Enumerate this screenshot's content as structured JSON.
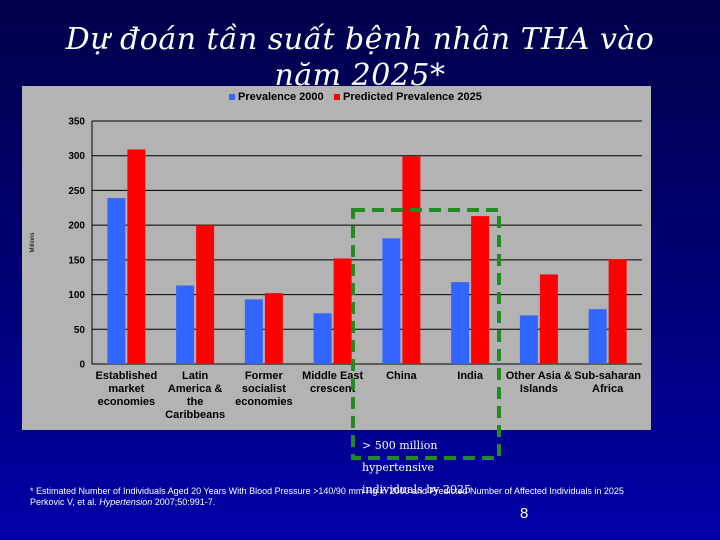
{
  "slide": {
    "title": "Dự đoán tần suất bệnh nhân THA vào năm 2025*",
    "note_line1": "> 500 million hypertensive",
    "note_line2": "individuals by 2025",
    "footnote_line1": "* Estimated Number of Individuals Aged 20 Years With Blood Pressure >140/90 mm Hg in 2000 and Predicted Number of Affected Individuals in 2025",
    "footnote_authors": "Perkovic V, et al. ",
    "footnote_journal": "Hypertension",
    "footnote_citation": " 2007;50:991-7.",
    "page_number": "8"
  },
  "chart_data": {
    "type": "bar",
    "title": "",
    "ylabel": "Millions",
    "xlabel": "",
    "ylim": [
      0,
      350
    ],
    "yticks": [
      0,
      50,
      100,
      150,
      200,
      250,
      300,
      350
    ],
    "legend_position": "top",
    "categories": [
      [
        "Established",
        "market",
        "economies"
      ],
      [
        "Latin",
        "America &",
        "the",
        "Caribbeans"
      ],
      [
        "Former",
        "socialist",
        "economies"
      ],
      [
        "Middle East",
        "crescent"
      ],
      [
        "China"
      ],
      [
        "India"
      ],
      [
        "Other Asia &",
        "Islands"
      ],
      [
        "Sub-saharan",
        "Africa"
      ]
    ],
    "series": [
      {
        "name": "Prevalence 2000",
        "color": "#3366ff",
        "values": [
          239,
          113,
          93,
          73,
          181,
          118,
          70,
          79
        ]
      },
      {
        "name": "Predicted Prevalence 2025",
        "color": "#ff0000",
        "values": [
          309,
          200,
          102,
          152,
          299,
          213,
          129,
          151
        ]
      }
    ],
    "highlight_box": {
      "color": "#228b22",
      "style": "dashed",
      "categories_covered": [
        "Middle East crescent",
        "China",
        "India"
      ]
    }
  }
}
